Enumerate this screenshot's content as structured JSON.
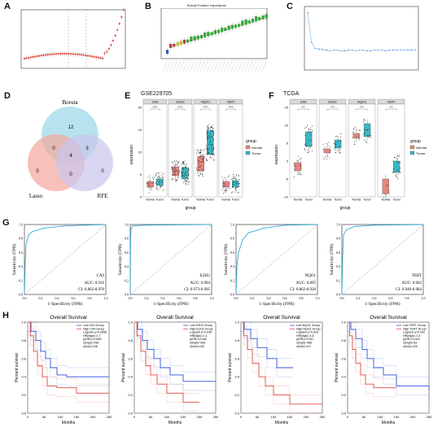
{
  "panel_letters": [
    "A",
    "B",
    "C",
    "D",
    "E",
    "F",
    "G",
    "H"
  ],
  "colors": {
    "red": "#e0473d",
    "blue": "#2a52d9",
    "teal": "#3bb7c4",
    "salmon": "#e58781",
    "green": "#2db52d",
    "yellow": "#e6c619",
    "boxred": "#cf3b2e",
    "venn_blue": "#9fd9ea",
    "venn_red": "#f3a69c",
    "venn_purple": "#c9c4ec",
    "roc": "#2fa9d6"
  },
  "panel_b": {
    "title": "Boruta Feature Importance"
  },
  "venn": {
    "labels": {
      "boruta": "Boruta",
      "lasso": "Lasso",
      "rfe": "RFE"
    },
    "numbers": {
      "boruta_only": "12",
      "lasso_boruta": "0",
      "boruta_rfe": "3",
      "center": "4",
      "lasso_only": "0",
      "lasso_rfe": "0",
      "rfe_only": "0"
    }
  },
  "panel_e": {
    "title": "GSE229705",
    "ylabel": "expression",
    "xlabel": "group",
    "genes": [
      "CA9",
      "EZH2",
      "NQO1",
      "TERT"
    ],
    "sig": [
      "****",
      "****",
      "****",
      "****"
    ],
    "groups": [
      "Normal",
      "Tumor"
    ],
    "legend_title": "group",
    "ticks": [
      "20",
      "15",
      "10",
      "5",
      "0"
    ]
  },
  "panel_f": {
    "title": "TCGA",
    "ylabel": "expression",
    "xlabel": "group",
    "genes": [
      "CA9",
      "EZH2",
      "NQO1",
      "TERT"
    ],
    "sig": [
      "***",
      "***",
      "***",
      "***"
    ],
    "groups": [
      "Normal",
      "Tumor"
    ],
    "legend_title": "group",
    "ticks": [
      "15",
      "10",
      "5",
      "0",
      "-5",
      "-10"
    ]
  },
  "roc": {
    "ylabel": "Sensitivity (TPR)",
    "xlabel": "1-Specificity (FPR)",
    "ticks": [
      "0.0",
      "0.2",
      "0.4",
      "0.6",
      "0.8",
      "1.0"
    ],
    "panels": [
      {
        "gene": "CA9",
        "auc": "AUC: 0.916",
        "ci": "CI: 0.862-0.970"
      },
      {
        "gene": "EZH2",
        "auc": "AUC: 0.984",
        "ci": "CI: 0.973-0.995"
      },
      {
        "gene": "NQO1",
        "auc": "AUC: 0.895",
        "ci": "CI: 0.862-0.928"
      },
      {
        "gene": "TERT",
        "auc": "AUC: 0.962",
        "ci": "CI: 0.940-0.984"
      }
    ]
  },
  "km": {
    "title": "Overall Survival",
    "ylabel": "Percent survival",
    "xlabel": "Months",
    "xticks": [
      "0",
      "50",
      "100",
      "150",
      "200",
      "250"
    ],
    "yticks": [
      "0.0",
      "0.2",
      "0.4",
      "0.6",
      "0.8",
      "1.0"
    ],
    "panels": [
      {
        "legend": [
          "Low CA9 Group",
          "High CA9 Group",
          "Logrank p=0.0066",
          "HR(high)=1.7",
          "p(HR)=0.0069",
          "n(high)=258",
          "n(low)=246"
        ]
      },
      {
        "legend": [
          "Low EZH2 Group",
          "High EZH2 Group",
          "Logrank p=0.045",
          "HR(high)=1.4",
          "p(HR)=0.046",
          "n(high)=266",
          "n(low)=163"
        ]
      },
      {
        "legend": [
          "Low NQO1 Group",
          "High NQO1 Group",
          "Logrank p=0.029",
          "HR(high)=1.6",
          "p(HR)=0.030",
          "n(high)=366",
          "n(low)=110"
        ]
      },
      {
        "legend": [
          "Low TERT Group",
          "High TERT Group",
          "Logrank p=0.042",
          "HR(high)=1.5",
          "p(HR)=0.043",
          "n(high)=83",
          "n(low)=425"
        ]
      }
    ]
  },
  "chart_data": [
    {
      "type": "scatter",
      "panel": "A",
      "description_values": "U-shaped cross-validation error curve (lasso); values not readable",
      "x": [],
      "y": []
    },
    {
      "type": "bar",
      "panel": "B",
      "title": "Boruta Feature Importance",
      "categories": [],
      "values": []
    },
    {
      "type": "line",
      "panel": "C",
      "x": [
        1,
        2,
        3,
        4,
        5,
        6,
        7,
        8,
        9,
        10,
        11,
        12,
        13,
        14,
        15,
        16,
        17,
        18,
        19,
        20,
        21,
        22,
        23,
        24,
        25,
        26,
        27,
        28,
        29,
        30
      ],
      "y": [
        0.95,
        0.45,
        0.34,
        0.33,
        0.32,
        0.31,
        0.3,
        0.31,
        0.31,
        0.3,
        0.3,
        0.31,
        0.31,
        0.3,
        0.31,
        0.31,
        0.3,
        0.3,
        0.31,
        0.31,
        0.31,
        0.3,
        0.31,
        0.31,
        0.31,
        0.31,
        0.31,
        0.31,
        0.31,
        0.31
      ]
    },
    {
      "type": "table",
      "panel": "G",
      "categories": [
        "CA9",
        "EZH2",
        "NQO1",
        "TERT"
      ],
      "series": [
        {
          "name": "AUC",
          "values": [
            0.916,
            0.984,
            0.895,
            0.962
          ]
        }
      ]
    }
  ]
}
